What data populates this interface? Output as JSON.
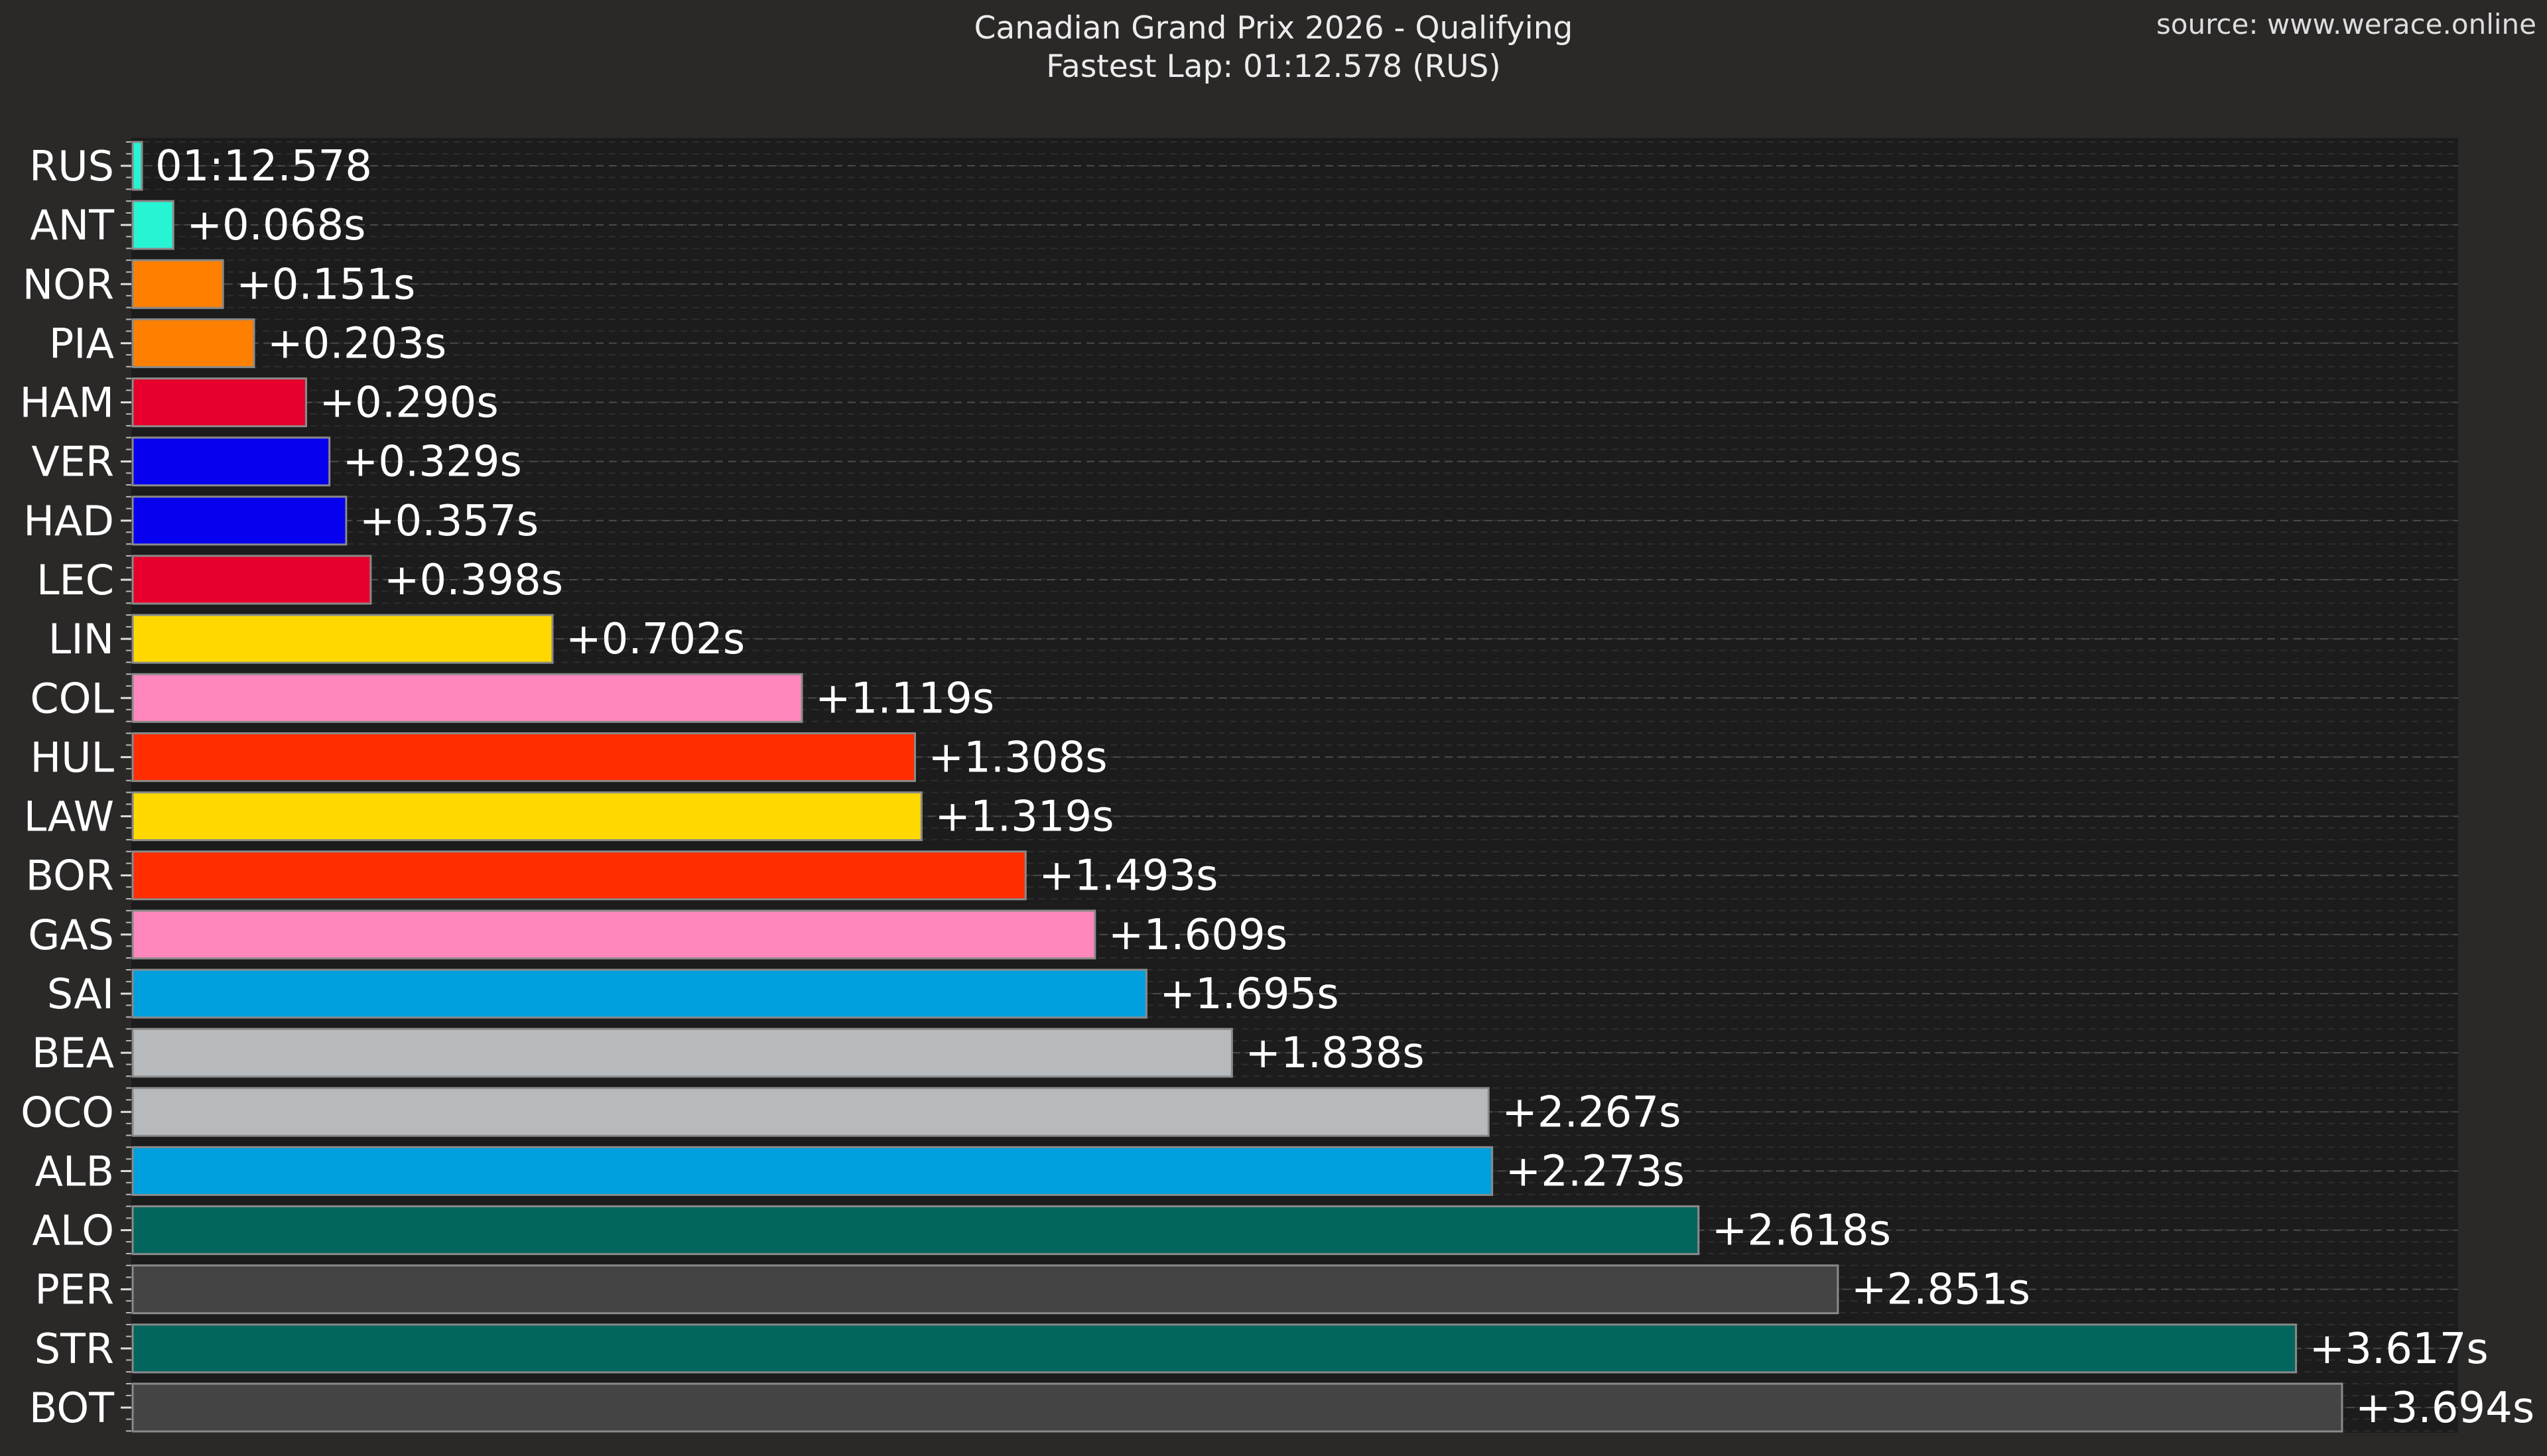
{
  "header": {
    "title": "Canadian Grand Prix 2026 - Qualifying",
    "subtitle": "Fastest Lap: 01:12.578 (RUS)",
    "source": "source: www.werace.online"
  },
  "chart_data": {
    "type": "bar",
    "orientation": "horizontal",
    "title": "Canadian Grand Prix 2026 - Qualifying",
    "subtitle": "Fastest Lap: 01:12.578 (RUS)",
    "xlabel": "",
    "ylabel": "",
    "xlim": [
      0,
      3.694
    ],
    "grid": "horizontal dashed",
    "legend": "none",
    "categories": [
      "RUS",
      "ANT",
      "NOR",
      "PIA",
      "HAM",
      "VER",
      "HAD",
      "LEC",
      "LIN",
      "COL",
      "HUL",
      "LAW",
      "BOR",
      "GAS",
      "SAI",
      "BEA",
      "OCO",
      "ALB",
      "ALO",
      "PER",
      "STR",
      "BOT"
    ],
    "values": [
      0.0,
      0.068,
      0.151,
      0.203,
      0.29,
      0.329,
      0.357,
      0.398,
      0.702,
      1.119,
      1.308,
      1.319,
      1.493,
      1.609,
      1.695,
      1.838,
      2.267,
      2.273,
      2.618,
      2.851,
      3.617,
      3.694
    ],
    "labels": [
      "01:12.578",
      "+0.068s",
      "+0.151s",
      "+0.203s",
      "+0.290s",
      "+0.329s",
      "+0.357s",
      "+0.398s",
      "+0.702s",
      "+1.119s",
      "+1.308s",
      "+1.319s",
      "+1.493s",
      "+1.609s",
      "+1.695s",
      "+1.838s",
      "+2.267s",
      "+2.273s",
      "+2.618s",
      "+2.851s",
      "+3.617s",
      "+3.694s"
    ],
    "colors": [
      "#27f4d2",
      "#27f4d2",
      "#ff8000",
      "#ff8000",
      "#e8002d",
      "#0600ef",
      "#0600ef",
      "#e8002d",
      "#ffd800",
      "#ff87bc",
      "#ff2d00",
      "#ffd800",
      "#ff2d00",
      "#ff87bc",
      "#00a0de",
      "#b6babd",
      "#b6babd",
      "#00a0de",
      "#03665e",
      "#444444",
      "#03665e",
      "#444444"
    ]
  }
}
